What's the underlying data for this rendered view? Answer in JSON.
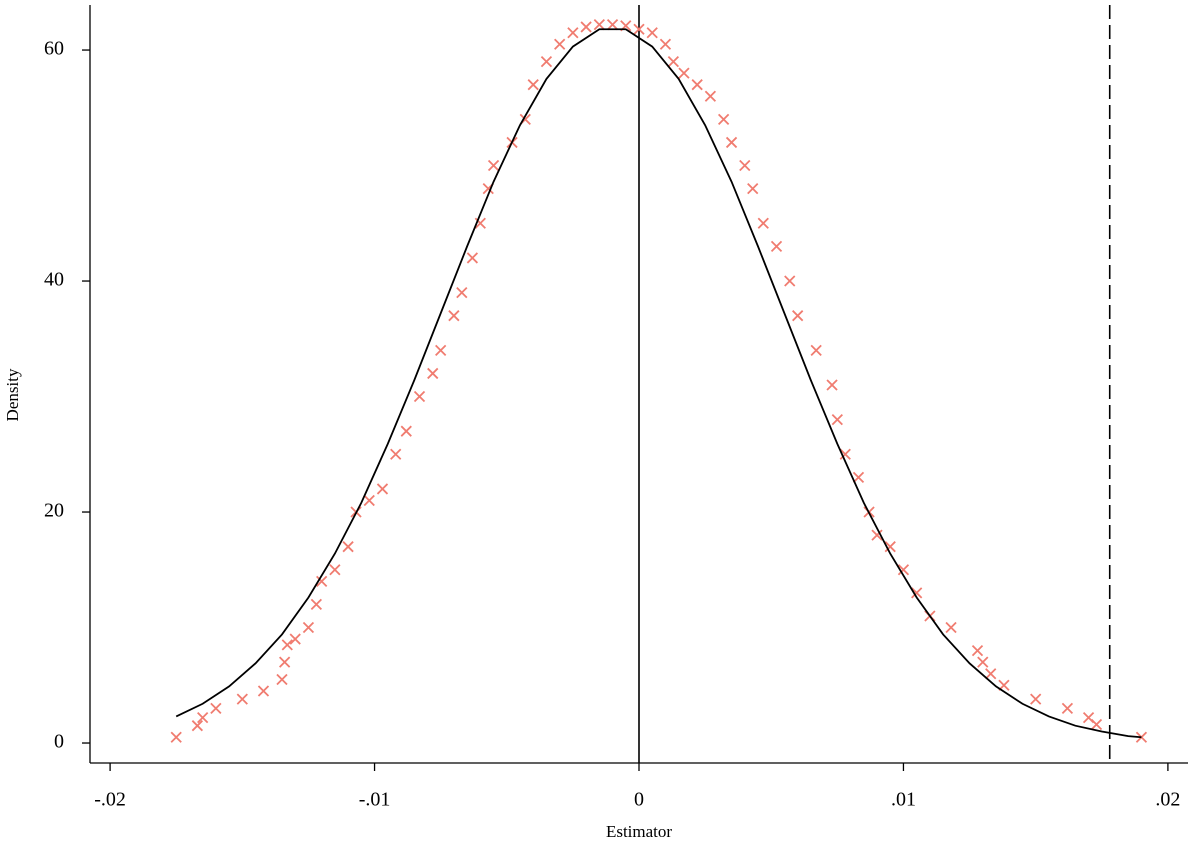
{
  "chart_data": {
    "type": "scatter",
    "x_label": "Estimator",
    "y_label": "Density",
    "xlim": [
      -0.02076,
      0.02076
    ],
    "ylim": [
      -1.73,
      63.9
    ],
    "xticks": [
      {
        "value": -0.02,
        "label": "-.02"
      },
      {
        "value": -0.01,
        "label": "-.01"
      },
      0,
      {
        "value": 0.01,
        "label": ".01"
      },
      {
        "value": 0.02,
        "label": ".02"
      }
    ],
    "yticks": [
      0,
      20,
      40,
      60
    ],
    "reference_lines": [
      {
        "x": 0,
        "style": "solid"
      },
      {
        "x": 0.0178,
        "style": "dashed"
      }
    ],
    "series": [
      {
        "type": "scatter",
        "marker": "x",
        "color": "#f07c70",
        "x": [
          -0.0175,
          -0.0167,
          -0.0165,
          -0.016,
          -0.015,
          -0.0142,
          -0.0135,
          -0.0134,
          -0.0133,
          -0.013,
          -0.0125,
          -0.0122,
          -0.012,
          -0.0115,
          -0.011,
          -0.0107,
          -0.0102,
          -0.0097,
          -0.0092,
          -0.0088,
          -0.0083,
          -0.0078,
          -0.0075,
          -0.007,
          -0.0067,
          -0.0063,
          -0.006,
          -0.0057,
          -0.0055,
          -0.0048,
          -0.0043,
          -0.004,
          -0.0035,
          -0.003,
          -0.0025,
          -0.002,
          -0.0015,
          -0.001,
          -0.0005,
          0,
          0.0005,
          0.001,
          0.0013,
          0.0017,
          0.0022,
          0.0027,
          0.0032,
          0.0035,
          0.004,
          0.0043,
          0.0047,
          0.0052,
          0.0057,
          0.006,
          0.0067,
          0.0073,
          0.0075,
          0.0078,
          0.0083,
          0.0087,
          0.009,
          0.0095,
          0.01,
          0.0105,
          0.011,
          0.0118,
          0.0128,
          0.013,
          0.0133,
          0.0138,
          0.015,
          0.0162,
          0.017,
          0.0173,
          0.019
        ],
        "values": [
          0.5,
          1.5,
          2.2,
          3,
          3.8,
          4.5,
          5.5,
          7,
          8.5,
          9,
          10,
          12,
          14,
          15,
          17,
          20,
          21,
          22,
          25,
          27,
          30,
          32,
          34,
          37,
          39,
          42,
          45,
          48,
          50,
          52,
          54,
          57,
          59,
          60.5,
          61.5,
          62,
          62.2,
          62.2,
          62.1,
          61.8,
          61.5,
          60.5,
          59,
          58,
          57,
          56,
          54,
          52,
          50,
          48,
          45,
          43,
          40,
          37,
          34,
          31,
          28,
          25,
          23,
          20,
          18,
          17,
          15,
          13,
          11,
          10,
          8,
          7,
          6,
          5,
          3.8,
          3,
          2.2,
          1.6,
          0.5
        ]
      },
      {
        "type": "line",
        "color": "#000000",
        "x": [
          -0.0175,
          -0.0165,
          -0.0155,
          -0.0145,
          -0.0135,
          -0.0125,
          -0.0115,
          -0.0105,
          -0.0095,
          -0.0085,
          -0.0075,
          -0.0065,
          -0.0055,
          -0.0045,
          -0.0035,
          -0.0025,
          -0.0015,
          -0.0005,
          0.0005,
          0.0015,
          0.0025,
          0.0035,
          0.0045,
          0.0055,
          0.0065,
          0.0075,
          0.0085,
          0.0095,
          0.0105,
          0.0115,
          0.0125,
          0.0135,
          0.0145,
          0.0155,
          0.0165,
          0.0175,
          0.0185,
          0.019
        ],
        "values": [
          2.3,
          3.4,
          4.9,
          6.9,
          9.4,
          12.6,
          16.4,
          20.8,
          25.9,
          31.4,
          37.2,
          43.0,
          48.6,
          53.5,
          57.5,
          60.3,
          61.8,
          61.8,
          60.3,
          57.5,
          53.5,
          48.6,
          43.0,
          37.2,
          31.4,
          25.9,
          20.8,
          16.4,
          12.6,
          9.4,
          6.9,
          4.9,
          3.4,
          2.3,
          1.5,
          1.0,
          0.6,
          0.5
        ]
      }
    ]
  }
}
